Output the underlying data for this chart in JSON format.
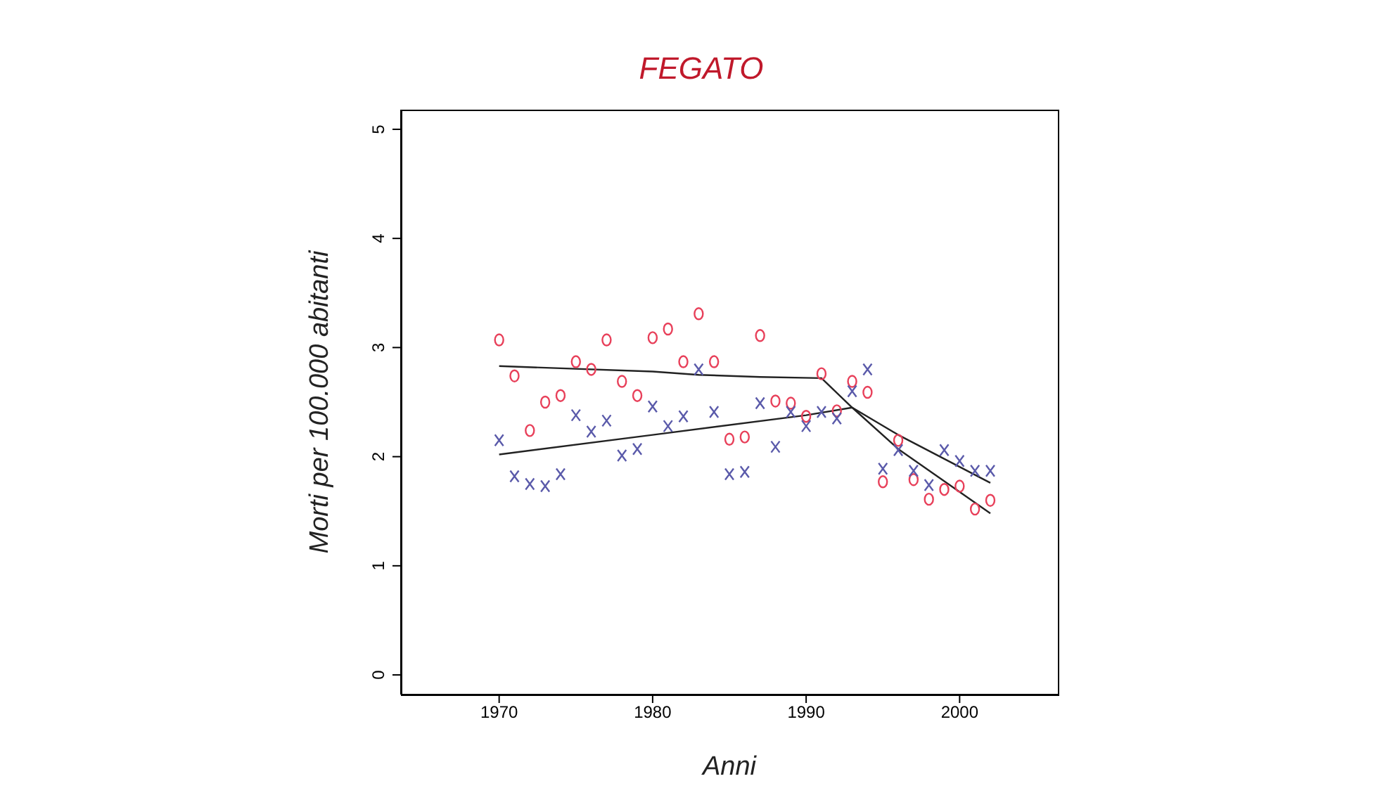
{
  "chart_data": {
    "type": "scatter",
    "title": "FEGATO",
    "xlabel": "Anni",
    "ylabel": "Morti per 100.000 abitanti",
    "x": [
      1970,
      1971,
      1972,
      1973,
      1974,
      1975,
      1976,
      1977,
      1978,
      1979,
      1980,
      1981,
      1982,
      1983,
      1984,
      1985,
      1986,
      1987,
      1988,
      1989,
      1990,
      1991,
      1992,
      1993,
      1994,
      1995,
      1996,
      1997,
      1998,
      1999,
      2000,
      2001,
      2002
    ],
    "series": [
      {
        "marker": "circle",
        "color": "#e8405a",
        "values": [
          3.07,
          2.74,
          2.24,
          2.5,
          2.56,
          2.87,
          2.8,
          3.07,
          2.69,
          2.56,
          3.09,
          3.17,
          2.87,
          3.31,
          2.87,
          2.16,
          2.18,
          3.11,
          2.51,
          2.49,
          2.37,
          2.76,
          2.42,
          2.69,
          2.59,
          1.77,
          2.15,
          1.79,
          1.61,
          1.7,
          1.73,
          1.52,
          1.6
        ]
      },
      {
        "marker": "cross",
        "color": "#5a5aaa",
        "values": [
          2.15,
          1.82,
          1.75,
          1.73,
          1.84,
          2.38,
          2.23,
          2.33,
          2.01,
          2.07,
          2.46,
          2.28,
          2.37,
          2.8,
          2.41,
          1.84,
          1.86,
          2.49,
          2.09,
          2.41,
          2.28,
          2.41,
          2.35,
          2.6,
          2.8,
          1.89,
          2.06,
          1.87,
          1.74,
          2.06,
          1.96,
          1.87,
          1.87
        ]
      },
      {
        "type": "line",
        "color": "#222222",
        "x": [
          1970,
          1980,
          1983,
          1987,
          1991,
          1993,
          1996,
          2002
        ],
        "values": [
          2.83,
          2.78,
          2.75,
          2.73,
          2.72,
          2.45,
          2.07,
          1.48
        ]
      },
      {
        "type": "line",
        "color": "#222222",
        "x": [
          1970,
          1980,
          1990,
          1993,
          1996,
          2002
        ],
        "values": [
          2.02,
          2.2,
          2.38,
          2.45,
          2.2,
          1.76
        ]
      }
    ],
    "xlim": [
      1963.6,
      2006.4
    ],
    "xticks": [
      1970,
      1980,
      1990,
      2000
    ],
    "ylim": [
      -0.18,
      5.18
    ],
    "yticks": [
      0,
      1,
      2,
      3,
      4,
      5
    ],
    "grid": false,
    "legend": false
  }
}
